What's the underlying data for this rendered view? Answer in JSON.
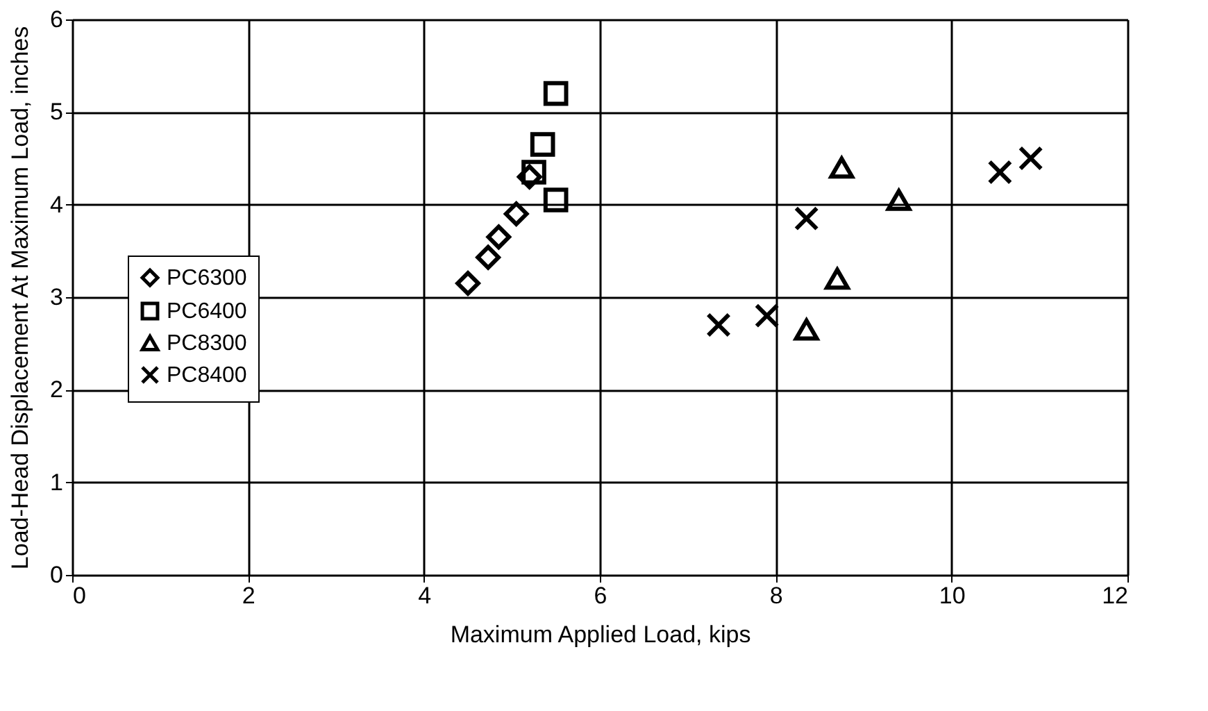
{
  "chart_data": {
    "type": "scatter",
    "xlabel": "Maximum Applied Load, kips",
    "ylabel": "Load-Head Displacement At Maximum Load, inches",
    "xlim": [
      0,
      12
    ],
    "xticks": [
      0,
      2,
      4,
      6,
      8,
      10,
      12
    ],
    "ylim": [
      0,
      6
    ],
    "yticks": [
      0,
      1,
      2,
      3,
      4,
      5,
      6
    ],
    "grid": true,
    "legend": "left",
    "series": [
      {
        "name": "PC6300",
        "color": "#000000",
        "marker": "diamond",
        "x": [
          4.5,
          4.73,
          4.85,
          5.05,
          5.2
        ],
        "values": [
          3.15,
          3.43,
          3.65,
          3.9,
          4.3
        ]
      },
      {
        "name": "PC6400",
        "color": "#000000",
        "marker": "square",
        "x": [
          5.25,
          5.35,
          5.5,
          5.5
        ],
        "values": [
          4.35,
          4.65,
          5.2,
          4.05
        ]
      },
      {
        "name": "PC8300",
        "color": "#000000",
        "marker": "triangle",
        "x": [
          8.35,
          8.7,
          8.75,
          9.4
        ],
        "values": [
          2.65,
          3.2,
          4.4,
          4.05
        ]
      },
      {
        "name": "PC8400",
        "color": "#000000",
        "marker": "cross",
        "x": [
          7.35,
          7.9,
          8.35,
          10.55,
          10.9
        ],
        "values": [
          2.7,
          2.8,
          3.85,
          4.35,
          4.5
        ]
      }
    ]
  }
}
